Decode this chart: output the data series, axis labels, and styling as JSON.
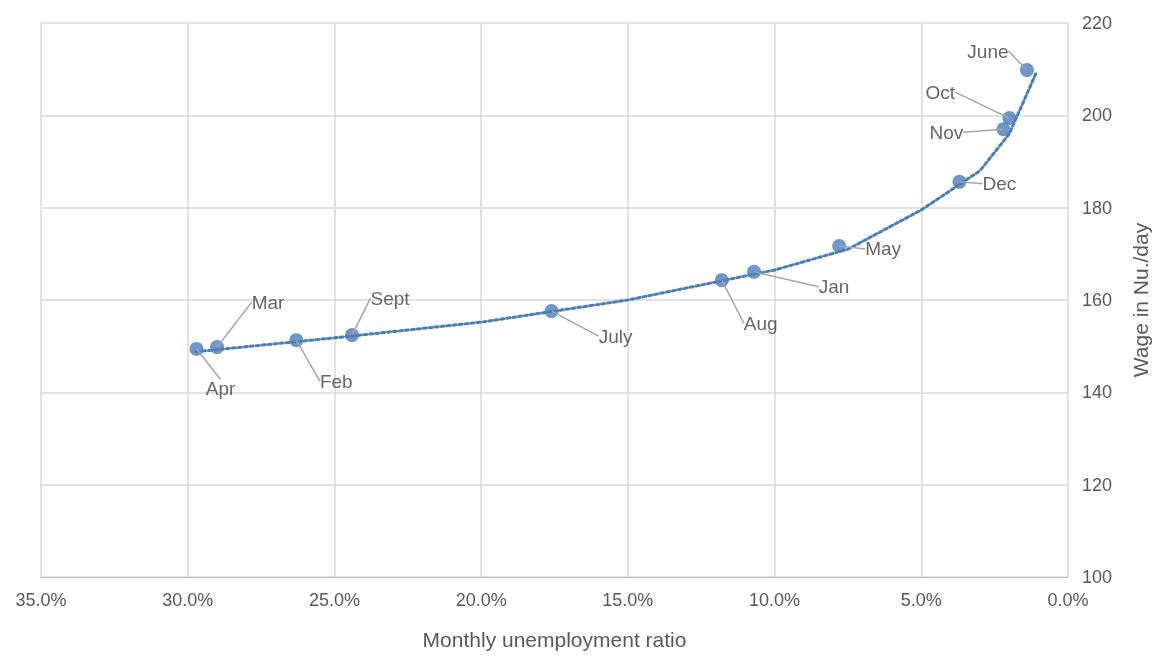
{
  "chart_data": {
    "type": "scatter",
    "xlabel": "Monthly unemployment ratio",
    "ylabel": "Wage in Nu./day",
    "xlim": [
      35,
      0
    ],
    "xticks": [
      {
        "value": 35,
        "label": "35.0%"
      },
      {
        "value": 30,
        "label": "30.0%"
      },
      {
        "value": 25,
        "label": "25.0%"
      },
      {
        "value": 20,
        "label": "20.0%"
      },
      {
        "value": 15,
        "label": "15.0%"
      },
      {
        "value": 10,
        "label": "10.0%"
      },
      {
        "value": 5,
        "label": "5.0%"
      },
      {
        "value": 0,
        "label": "0.0%"
      }
    ],
    "ylim": [
      100,
      220
    ],
    "yticks": [
      100,
      120,
      140,
      160,
      180,
      200,
      220
    ],
    "grid": true,
    "marker": "circle",
    "series": [
      {
        "color": "#4a7ebb",
        "x": [
          29.7,
          29.0,
          26.3,
          24.4,
          17.6,
          11.8,
          10.7,
          7.8,
          3.7,
          2.2,
          2.0,
          1.4
        ],
        "values": [
          149.4,
          149.8,
          151.3,
          152.4,
          157.6,
          164.3,
          166.1,
          171.7,
          185.6,
          197.0,
          199.4,
          209.8
        ]
      },
      {
        "type": "line",
        "color": "#4a7ebb",
        "line_style": "dotted",
        "marker": "none",
        "x": [
          29.7,
          25,
          20,
          15,
          10,
          7.5,
          5,
          3,
          2,
          1.1
        ],
        "values": [
          148.8,
          151.8,
          155.2,
          160,
          166.5,
          171,
          179.5,
          188,
          196,
          209
        ]
      }
    ],
    "annotations": [
      {
        "text": "Apr",
        "x": 29.7,
        "y": 149.4
      },
      {
        "text": "Mar",
        "x": 29.0,
        "y": 149.8
      },
      {
        "text": "Feb",
        "x": 26.3,
        "y": 151.3
      },
      {
        "text": "Sept",
        "x": 24.4,
        "y": 152.4
      },
      {
        "text": "July",
        "x": 17.6,
        "y": 157.6
      },
      {
        "text": "Aug",
        "x": 11.8,
        "y": 164.3
      },
      {
        "text": "Jan",
        "x": 10.7,
        "y": 166.1
      },
      {
        "text": "May",
        "x": 7.8,
        "y": 171.7
      },
      {
        "text": "Dec",
        "x": 3.7,
        "y": 185.6
      },
      {
        "text": "Nov",
        "x": 2.2,
        "y": 197.0
      },
      {
        "text": "Oct",
        "x": 2.0,
        "y": 199.4
      },
      {
        "text": "June",
        "x": 1.4,
        "y": 209.8
      }
    ]
  }
}
